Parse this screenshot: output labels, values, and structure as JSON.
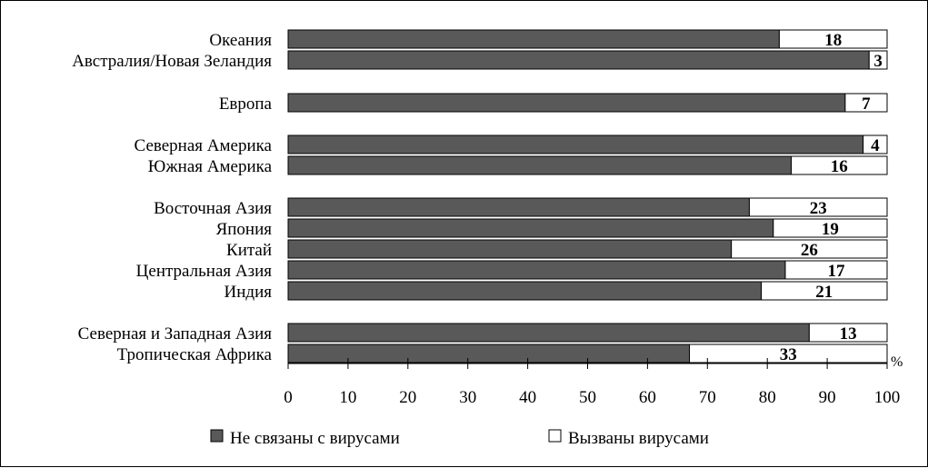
{
  "chart_data": {
    "type": "bar",
    "orientation": "horizontal",
    "stacked": true,
    "categories": [
      "Океания",
      "Австралия/Новая Зеландия",
      "Европа",
      "Северная Америка",
      "Южная Америка",
      "Восточная Азия",
      "Япония",
      "Китай",
      "Центральная Азия",
      "Индия",
      "Северная и Западная Азия",
      "Тропическая Африка"
    ],
    "series": [
      {
        "name": "Не связаны с вирусами",
        "color": "#595959",
        "values": [
          82,
          97,
          93,
          96,
          84,
          77,
          81,
          74,
          83,
          79,
          87,
          67
        ]
      },
      {
        "name": "Вызваны вирусами",
        "color": "#ffffff",
        "values": [
          18,
          3,
          7,
          4,
          16,
          23,
          19,
          26,
          17,
          21,
          13,
          33
        ]
      }
    ],
    "value_labels": [
      "18",
      "3",
      "7",
      "4",
      "16",
      "23",
      "19",
      "26",
      "17",
      "21",
      "13",
      "33"
    ],
    "x_ticks": [
      "0",
      "10",
      "20",
      "30",
      "40",
      "50",
      "60",
      "70",
      "80",
      "90",
      "100"
    ],
    "xlim": [
      0,
      100
    ],
    "x_unit": "%",
    "grid": false,
    "legend_position": "bottom"
  }
}
